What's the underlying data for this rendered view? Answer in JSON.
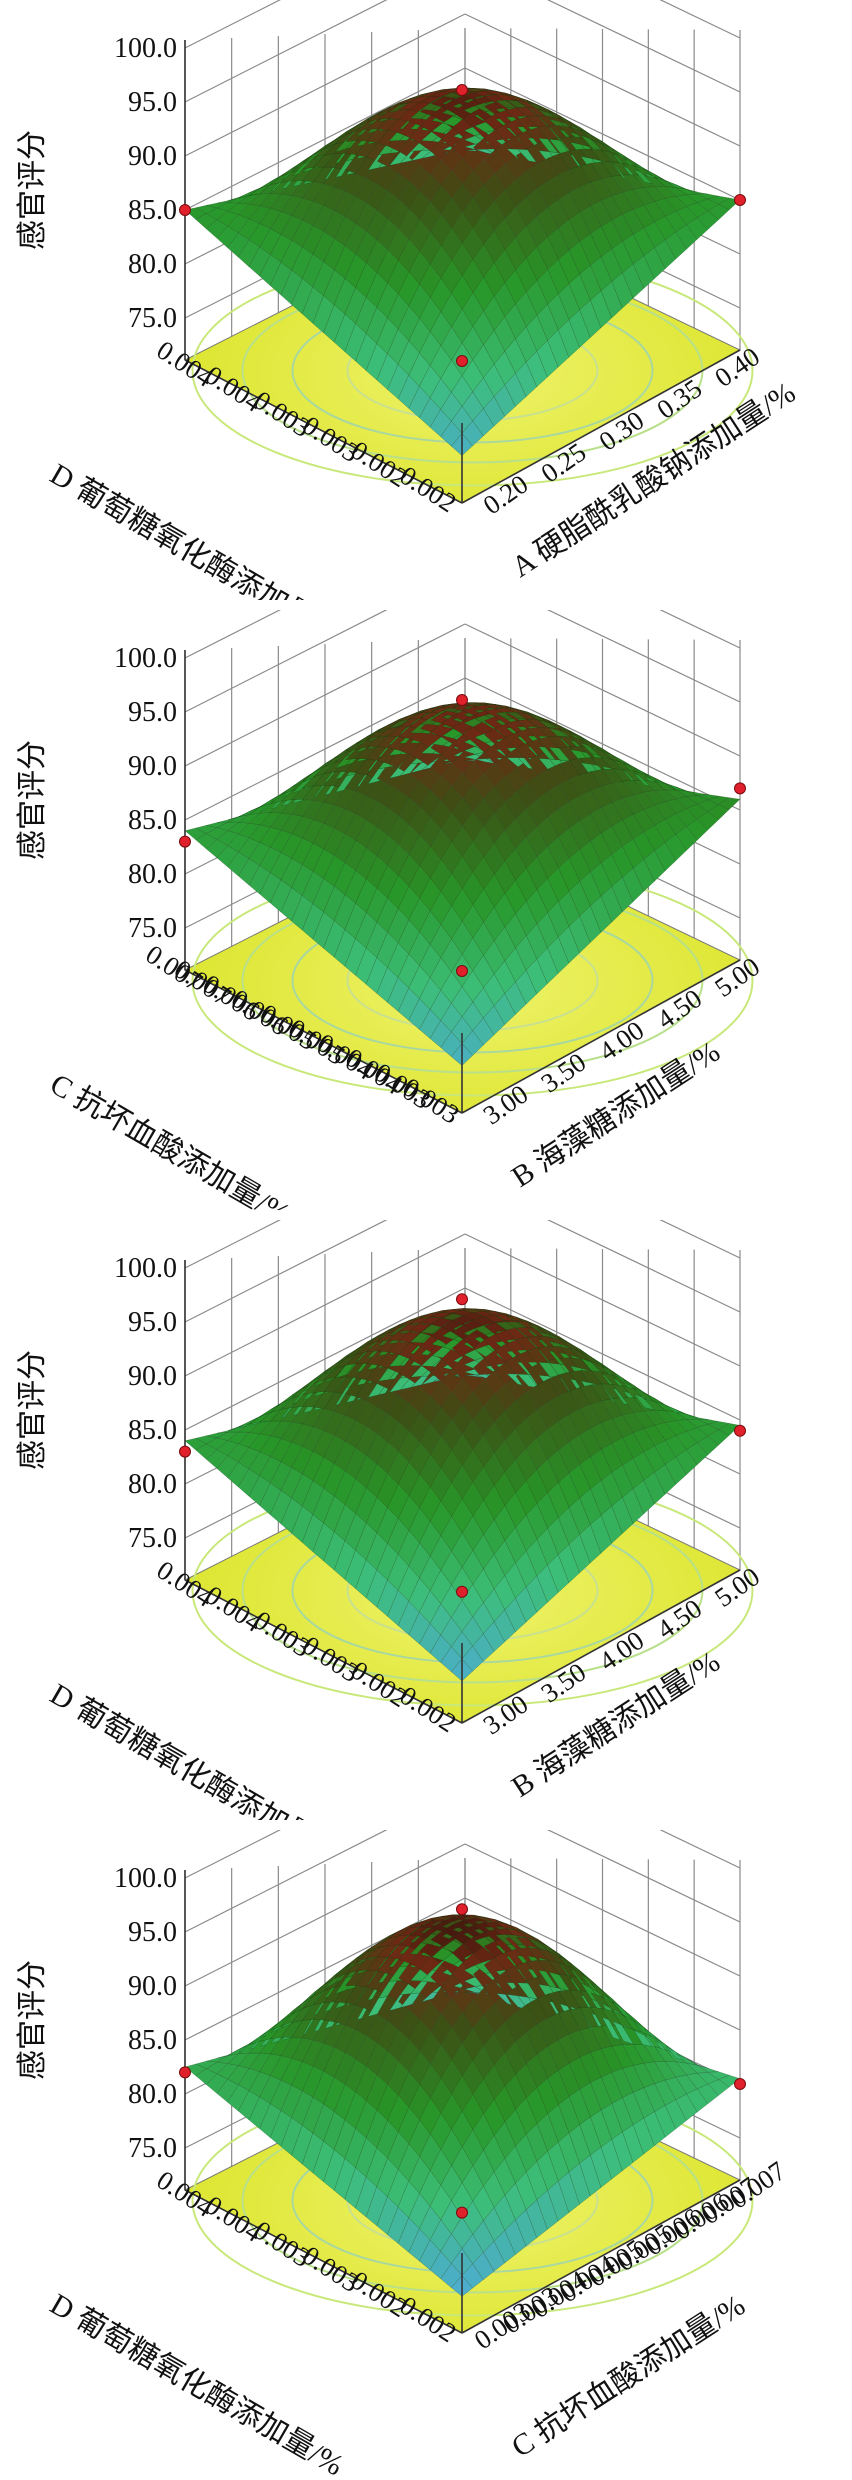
{
  "chart_data": [
    {
      "type": "surface",
      "zlabel": "感官评分",
      "zticks": [
        "100.0",
        "95.0",
        "90.0",
        "85.0",
        "80.0",
        "75.0"
      ],
      "zlim": [
        75,
        100
      ],
      "xlabel": "A 硬脂酰乳酸钠添加量/%",
      "xticks": [
        "0.20",
        "0.25",
        "0.30",
        "0.35",
        "0.40"
      ],
      "ylabel": "D 葡萄糖氧化酶添加量/%",
      "yticks": [
        "0.002",
        "0.002",
        "0.003",
        "0.003",
        "0.004",
        "0.004"
      ],
      "surface": {
        "peak": 94.5,
        "corner_left": 85.0,
        "corner_right": 85.0,
        "corner_front": 75.5
      },
      "points": [
        {
          "label": "top",
          "value": 95.0
        },
        {
          "label": "left",
          "value": 85.0
        },
        {
          "label": "right",
          "value": 85.0
        },
        {
          "label": "front",
          "value": 75.0
        }
      ]
    },
    {
      "type": "surface",
      "zlabel": "感官评分",
      "zticks": [
        "100.0",
        "95.0",
        "90.0",
        "85.0",
        "80.0",
        "75.0"
      ],
      "zlim": [
        75,
        100
      ],
      "xlabel": "B 海藻糖添加量/%",
      "xticks": [
        "3.00",
        "3.50",
        "4.00",
        "4.50",
        "5.00"
      ],
      "ylabel": "C 抗坏血酸添加量/%",
      "yticks": [
        "0.003",
        "0.003",
        "0.004",
        "0.004",
        "0.005",
        "0.005",
        "0.006",
        "0.006",
        "0.007",
        "0.007"
      ],
      "surface": {
        "peak": 94.0,
        "corner_left": 84.0,
        "corner_right": 86.0,
        "corner_front": 75.5
      },
      "points": [
        {
          "label": "top",
          "value": 95.0
        },
        {
          "label": "left",
          "value": 83.0
        },
        {
          "label": "right",
          "value": 87.0
        },
        {
          "label": "front",
          "value": 75.0
        }
      ]
    },
    {
      "type": "surface",
      "zlabel": "感官评分",
      "zticks": [
        "100.0",
        "95.0",
        "90.0",
        "85.0",
        "80.0",
        "75.0"
      ],
      "zlim": [
        75,
        100
      ],
      "xlabel": "B 海藻糖添加量/%",
      "xticks": [
        "3.00",
        "3.50",
        "4.00",
        "4.50",
        "5.00"
      ],
      "ylabel": "D 葡萄糖氧化酶添加量/%",
      "yticks": [
        "0.002",
        "0.002",
        "0.003",
        "0.003",
        "0.004",
        "0.004"
      ],
      "surface": {
        "peak": 94.5,
        "corner_left": 84.0,
        "corner_right": 84.5,
        "corner_front": 75.0
      },
      "points": [
        {
          "label": "top",
          "value": 96.0
        },
        {
          "label": "left",
          "value": 83.0
        },
        {
          "label": "right",
          "value": 84.0
        },
        {
          "label": "front",
          "value": 74.0
        }
      ]
    },
    {
      "type": "surface",
      "zlabel": "感官评分",
      "zticks": [
        "100.0",
        "95.0",
        "90.0",
        "85.0",
        "80.0",
        "75.0"
      ],
      "zlim": [
        75,
        100
      ],
      "xlabel": "C 抗坏血酸添加量/%",
      "xticks": [
        "0.003",
        "0.003",
        "0.004",
        "0.004",
        "0.005",
        "0.005",
        "0.006",
        "0.006",
        "0.007",
        "0.007"
      ],
      "ylabel": "D 葡萄糖氧化酶添加量/%",
      "yticks": [
        "0.002",
        "0.002",
        "0.003",
        "0.003",
        "0.004",
        "0.004"
      ],
      "surface": {
        "peak": 95.0,
        "corner_left": 82.5,
        "corner_right": 80.5,
        "corner_front": 74.5
      },
      "points": [
        {
          "label": "top",
          "value": 96.0
        },
        {
          "label": "left",
          "value": 82.0
        },
        {
          "label": "right",
          "value": 80.0
        },
        {
          "label": "front",
          "value": 73.0
        }
      ]
    }
  ]
}
